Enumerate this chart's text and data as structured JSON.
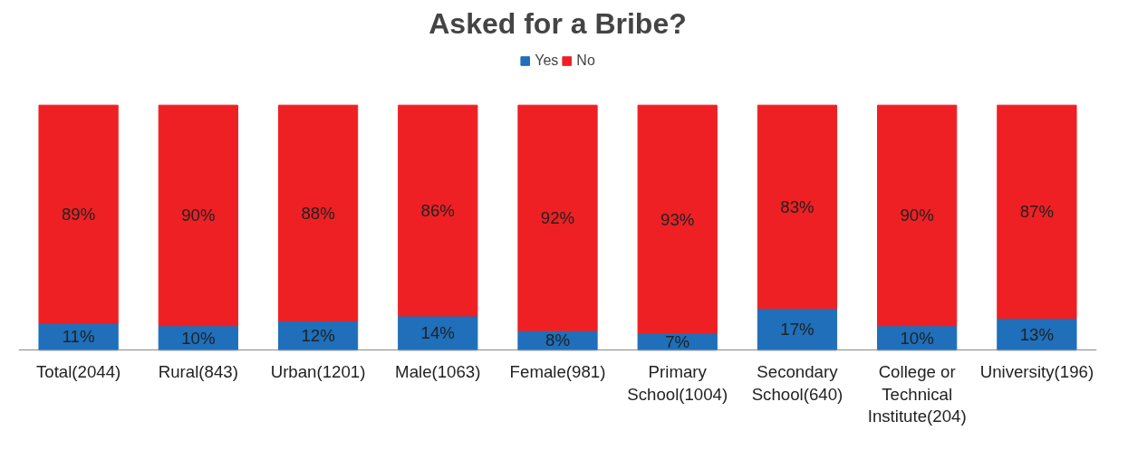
{
  "chart_data": {
    "type": "bar",
    "title": "Asked for a Bribe?",
    "stacked": true,
    "legend": "top",
    "grid": false,
    "categories": [
      "Total(2044)",
      "Rural(843)",
      "Urban(1201)",
      "Male(1063)",
      "Female(981)",
      "Primary School(1004)",
      "Secondary School(640)",
      "College or Technical Institute(204)",
      "University(196)"
    ],
    "series": [
      {
        "name": "Yes",
        "color": "#1f6fba",
        "values": [
          11,
          10,
          12,
          14,
          8,
          7,
          17,
          10,
          13
        ],
        "value_labels": [
          "11%",
          "10%",
          "12%",
          "14%",
          "8%",
          "7%",
          "17%",
          "10%",
          "13%"
        ]
      },
      {
        "name": "No",
        "color": "#ee2024",
        "values": [
          89,
          90,
          88,
          86,
          92,
          93,
          83,
          90,
          87
        ],
        "value_labels": [
          "89%",
          "90%",
          "88%",
          "86%",
          "92%",
          "93%",
          "83%",
          "90%",
          "87%"
        ]
      }
    ]
  }
}
